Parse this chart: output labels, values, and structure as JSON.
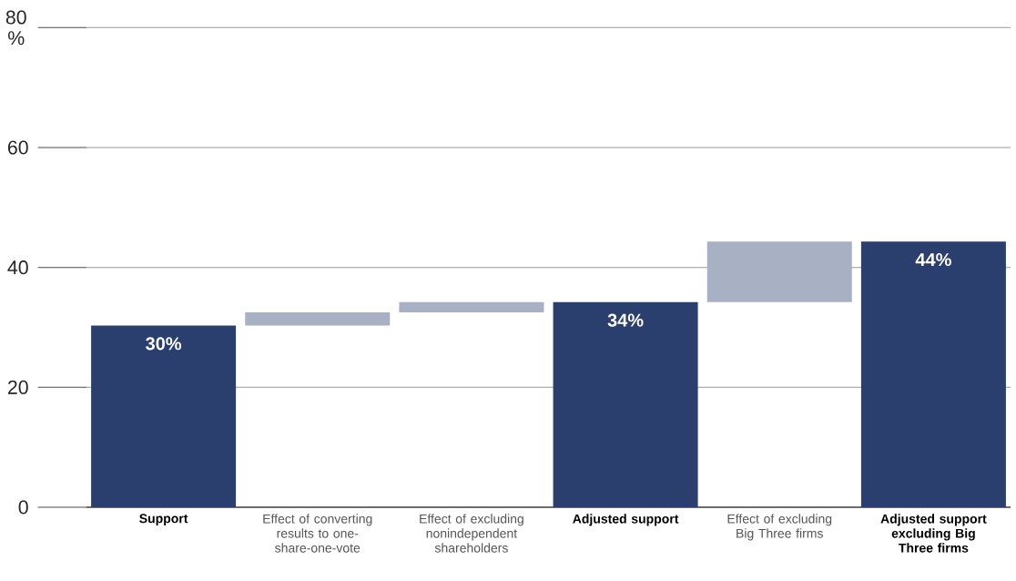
{
  "chart_data": {
    "type": "bar",
    "categories": [
      "Support",
      "Effect of converting results to one-share-one-vote",
      "Effect of excluding nonindependent shareholders",
      "Adjusted support",
      "Effect of excluding Big Three firms",
      "Adjusted support excluding Big Three firms"
    ],
    "values": [
      30.3,
      2.2,
      1.7,
      34.2,
      10.1,
      44.3
    ],
    "base": [
      null,
      30.3,
      32.5,
      null,
      34.2,
      null
    ],
    "colors": [
      "#2a3f6e",
      "#a8b0c3",
      "#a8b0c3",
      "#2a3f6e",
      "#a8b0c3",
      "#2a3f6e"
    ],
    "value_labels": [
      "30%",
      null,
      null,
      "34%",
      null,
      "44%"
    ],
    "ylim": [
      0,
      80
    ],
    "yticks": [
      0,
      20,
      40,
      60,
      {
        "value": 80,
        "label": "80 %"
      }
    ],
    "grid": "y"
  }
}
